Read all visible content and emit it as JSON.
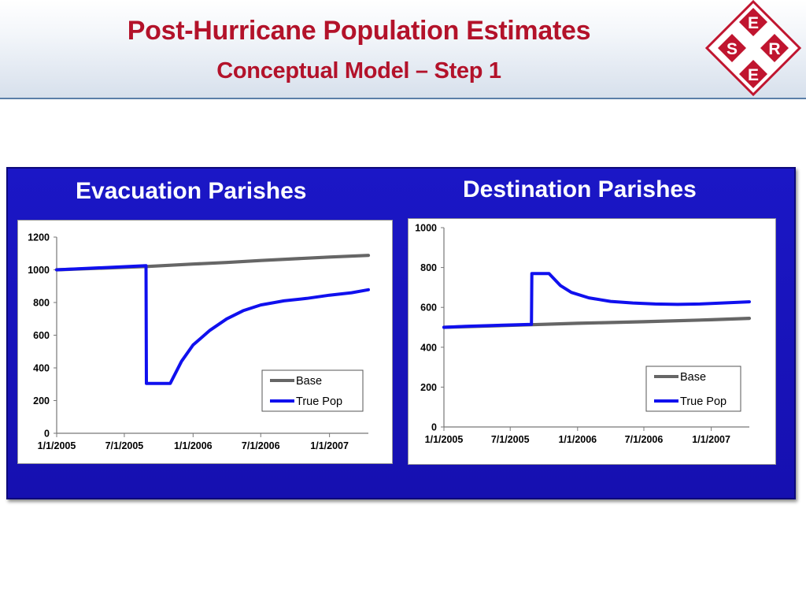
{
  "header": {
    "title": "Post-Hurricane Population Estimates",
    "subtitle": "Conceptual Model – Step 1",
    "logo_letters": [
      "E",
      "S",
      "R",
      "E"
    ],
    "colors": {
      "title": "#b3122a",
      "logo": "#c0152f",
      "panel": "#1b17c6"
    }
  },
  "chart_data": [
    {
      "type": "line",
      "title": "Evacuation Parishes",
      "xlabel": "",
      "ylabel": "",
      "x_ticks": [
        "1/1/2005",
        "7/1/2005",
        "1/1/2006",
        "7/1/2006",
        "1/1/2007"
      ],
      "xlim": [
        "1/1/2005",
        "4/15/2007"
      ],
      "ylim": [
        0,
        1200
      ],
      "y_ticks": [
        0,
        200,
        400,
        600,
        800,
        1000,
        1200
      ],
      "grid": false,
      "legend": "bottom-right",
      "series": [
        {
          "name": "Base",
          "color": "#666666",
          "points": [
            [
              "1/1/2005",
              1000
            ],
            [
              "8/29/2005",
              1020
            ],
            [
              "1/1/2006",
              1035
            ],
            [
              "4/1/2006",
              1045
            ],
            [
              "7/1/2006",
              1057
            ],
            [
              "1/1/2007",
              1078
            ],
            [
              "4/15/2007",
              1088
            ]
          ]
        },
        {
          "name": "True Pop",
          "color": "#1010ee",
          "points": [
            [
              "1/1/2005",
              1000
            ],
            [
              "8/28/2005",
              1025
            ],
            [
              "8/29/2005",
              305
            ],
            [
              "11/1/2005",
              305
            ],
            [
              "12/1/2005",
              440
            ],
            [
              "1/1/2006",
              540
            ],
            [
              "2/15/2006",
              630
            ],
            [
              "4/1/2006",
              700
            ],
            [
              "5/15/2006",
              750
            ],
            [
              "7/1/2006",
              785
            ],
            [
              "9/1/2006",
              810
            ],
            [
              "11/1/2006",
              825
            ],
            [
              "1/1/2007",
              845
            ],
            [
              "3/1/2007",
              860
            ],
            [
              "4/15/2007",
              878
            ]
          ]
        }
      ]
    },
    {
      "type": "line",
      "title": "Destination Parishes",
      "xlabel": "",
      "ylabel": "",
      "x_ticks": [
        "1/1/2005",
        "7/1/2005",
        "1/1/2006",
        "7/1/2006",
        "1/1/2007"
      ],
      "xlim": [
        "1/1/2005",
        "4/15/2007"
      ],
      "ylim": [
        0,
        1000
      ],
      "y_ticks": [
        0,
        200,
        400,
        600,
        800,
        1000
      ],
      "grid": false,
      "legend": "bottom-right",
      "series": [
        {
          "name": "Base",
          "color": "#666666",
          "points": [
            [
              "1/1/2005",
              500
            ],
            [
              "8/29/2005",
              513
            ],
            [
              "1/1/2006",
              520
            ],
            [
              "7/1/2006",
              528
            ],
            [
              "1/1/2007",
              538
            ],
            [
              "4/15/2007",
              545
            ]
          ]
        },
        {
          "name": "True Pop",
          "color": "#1010ee",
          "points": [
            [
              "1/1/2005",
              500
            ],
            [
              "3/1/2005",
              505
            ],
            [
              "8/28/2005",
              515
            ],
            [
              "8/29/2005",
              770
            ],
            [
              "10/15/2005",
              770
            ],
            [
              "11/15/2005",
              710
            ],
            [
              "12/15/2005",
              675
            ],
            [
              "2/1/2006",
              648
            ],
            [
              "4/1/2006",
              630
            ],
            [
              "6/1/2006",
              622
            ],
            [
              "8/1/2006",
              617
            ],
            [
              "10/1/2006",
              615
            ],
            [
              "12/1/2006",
              617
            ],
            [
              "2/1/2007",
              622
            ],
            [
              "4/15/2007",
              628
            ]
          ]
        }
      ]
    }
  ]
}
